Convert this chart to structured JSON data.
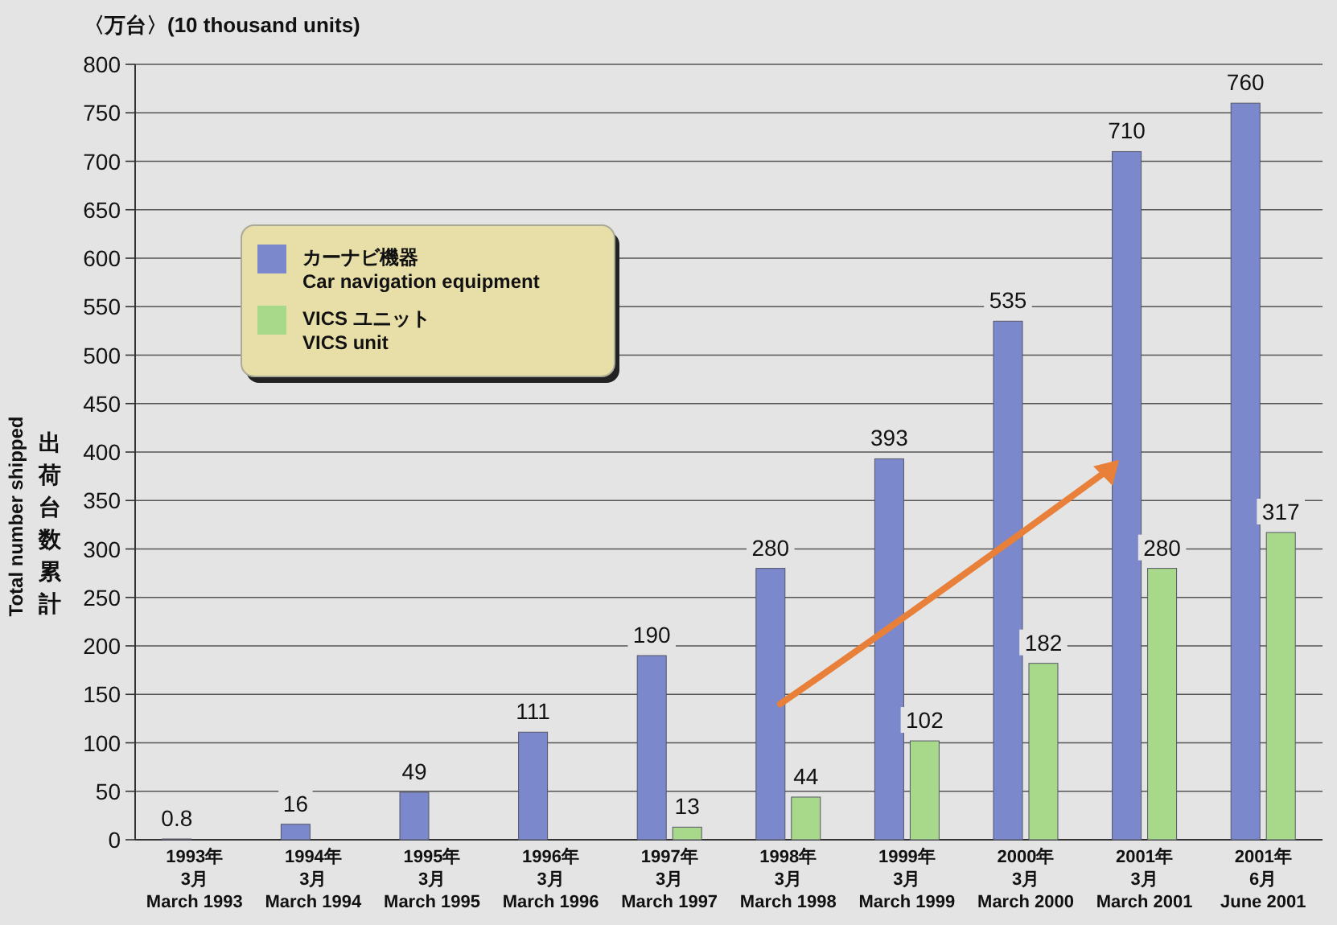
{
  "chart_data": {
    "type": "bar",
    "categories": [
      "1993年\n3月\nMarch 1993",
      "1994年\n3月\nMarch 1994",
      "1995年\n3月\nMarch 1995",
      "1996年\n3月\nMarch 1996",
      "1997年\n3月\nMarch 1997",
      "1998年\n3月\nMarch 1998",
      "1999年\n3月\nMarch 1999",
      "2000年\n3月\nMarch 2000",
      "2001年\n3月\nMarch 2001",
      "2001年\n6月\nJune 2001"
    ],
    "series": [
      {
        "name": "カーナビ機器\nCar navigation equipment",
        "color": "#7b88cc",
        "values": [
          0.8,
          16,
          49,
          111,
          190,
          280,
          393,
          535,
          710,
          760
        ]
      },
      {
        "name": "VICS ユニット\nVICS unit",
        "color": "#a8d88a",
        "values": [
          null,
          null,
          null,
          null,
          13,
          44,
          102,
          182,
          280,
          317
        ]
      }
    ],
    "ylabel": "Total number shipped",
    "annotations": [
      "〈万台〉(10 thousand units)",
      "出荷台数累計"
    ],
    "ylim": [
      0,
      800
    ],
    "yticks": [
      0,
      50,
      100,
      150,
      200,
      250,
      300,
      350,
      400,
      450,
      500,
      550,
      600,
      650,
      700,
      750,
      800
    ],
    "grid": "y",
    "legend": "top left",
    "data_labels": true
  }
}
